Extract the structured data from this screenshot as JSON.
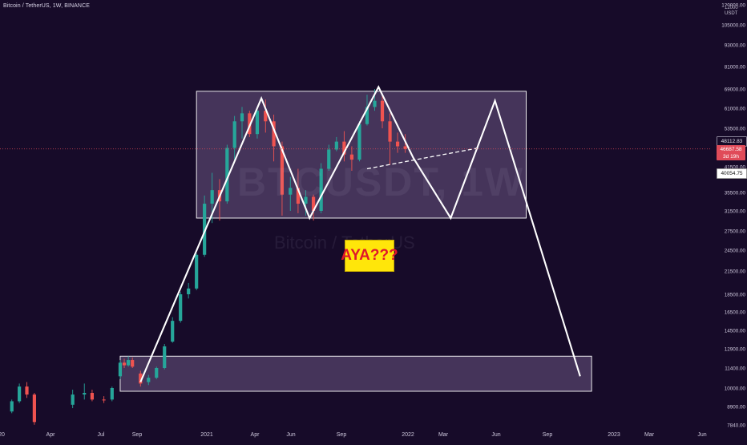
{
  "header": {
    "title": "Bitcoin / TetherUS, 1W, BINANCE"
  },
  "watermark": {
    "symbol": "BTCUSDT, 1W",
    "name": "Bitcoin / TetherUS"
  },
  "annotation": {
    "text": "AYA???"
  },
  "currency": {
    "line1": "12000",
    "line2": "USDT"
  },
  "price_tags": {
    "tag1": "48112.83",
    "tag2": "46687.58",
    "tag2_countdown": "3d 19h",
    "tag3": "40054.75"
  },
  "colors": {
    "background": "#170b29",
    "up_candle": "#26a69a",
    "down_candle": "#ef5350",
    "overlay_box": "#a78bc3",
    "drawing": "#ffffff",
    "annotation_bg": "#ffe60a",
    "annotation_text": "#e0162b"
  },
  "chart_data": {
    "type": "candlestick",
    "title": "Bitcoin / TetherUS, 1W, BINANCE",
    "y_scale": "log",
    "ylim": [
      7840,
      120000
    ],
    "y_ticks": [
      {
        "value": 120000,
        "label": "120000.00"
      },
      {
        "value": 105000,
        "label": "105000.00"
      },
      {
        "value": 93000,
        "label": "93000.00"
      },
      {
        "value": 81000,
        "label": "81000.00"
      },
      {
        "value": 69000,
        "label": "69000.00"
      },
      {
        "value": 61000,
        "label": "61000.00"
      },
      {
        "value": 53500,
        "label": "53500.00"
      },
      {
        "value": 41500,
        "label": "41500.00"
      },
      {
        "value": 35500,
        "label": "35500.00"
      },
      {
        "value": 31500,
        "label": "31500.00"
      },
      {
        "value": 27500,
        "label": "27500.00"
      },
      {
        "value": 24500,
        "label": "24500.00"
      },
      {
        "value": 21500,
        "label": "21500.00"
      },
      {
        "value": 18500,
        "label": "18500.00"
      },
      {
        "value": 16500,
        "label": "16500.00"
      },
      {
        "value": 14500,
        "label": "14500.00"
      },
      {
        "value": 12900,
        "label": "12900.00"
      },
      {
        "value": 11400,
        "label": "11400.00"
      },
      {
        "value": 10000,
        "label": "10000.00"
      },
      {
        "value": 8900,
        "label": "8900.00"
      },
      {
        "value": 7840,
        "label": "7840.00"
      }
    ],
    "x_ticks": [
      {
        "date": "2020-01-01",
        "label": "20"
      },
      {
        "date": "2020-04-01",
        "label": "Apr"
      },
      {
        "date": "2020-07-01",
        "label": "Jul"
      },
      {
        "date": "2020-09-01",
        "label": "Sep"
      },
      {
        "date": "2021-01-01",
        "label": "2021"
      },
      {
        "date": "2021-04-01",
        "label": "Apr"
      },
      {
        "date": "2021-06-01",
        "label": "Jun"
      },
      {
        "date": "2021-09-01",
        "label": "Sep"
      },
      {
        "date": "2022-01-01",
        "label": "2022"
      },
      {
        "date": "2022-03-01",
        "label": "Mar"
      },
      {
        "date": "2022-06-01",
        "label": "Jun"
      },
      {
        "date": "2022-09-01",
        "label": "Sep"
      },
      {
        "date": "2023-01-01",
        "label": "2023"
      },
      {
        "date": "2023-03-01",
        "label": "Mar"
      },
      {
        "date": "2023-06-01",
        "label": "Jun"
      }
    ],
    "candles": [
      {
        "d": "2020-01-20",
        "o": 8600,
        "h": 9300,
        "l": 8500,
        "c": 9200
      },
      {
        "d": "2020-02-03",
        "o": 9200,
        "h": 10300,
        "l": 9100,
        "c": 10100
      },
      {
        "d": "2020-02-17",
        "o": 10100,
        "h": 10400,
        "l": 9400,
        "c": 9600
      },
      {
        "d": "2020-03-02",
        "o": 9600,
        "h": 9700,
        "l": 7850,
        "c": 8000
      },
      {
        "d": "2020-05-11",
        "o": 9000,
        "h": 9900,
        "l": 8800,
        "c": 9600
      },
      {
        "d": "2020-06-01",
        "o": 9600,
        "h": 10300,
        "l": 9300,
        "c": 9700
      },
      {
        "d": "2020-06-15",
        "o": 9700,
        "h": 9900,
        "l": 9200,
        "c": 9300
      },
      {
        "d": "2020-07-06",
        "o": 9300,
        "h": 9500,
        "l": 9100,
        "c": 9250
      },
      {
        "d": "2020-07-20",
        "o": 9300,
        "h": 10100,
        "l": 9200,
        "c": 10000
      },
      {
        "d": "2020-08-03",
        "o": 10800,
        "h": 12000,
        "l": 10600,
        "c": 11800
      },
      {
        "d": "2020-08-10",
        "o": 11800,
        "h": 12100,
        "l": 11400,
        "c": 11600
      },
      {
        "d": "2020-08-17",
        "o": 11600,
        "h": 12300,
        "l": 11500,
        "c": 12000
      },
      {
        "d": "2020-08-24",
        "o": 12000,
        "h": 12200,
        "l": 11400,
        "c": 11500
      },
      {
        "d": "2020-09-07",
        "o": 11000,
        "h": 11200,
        "l": 10100,
        "c": 10300
      },
      {
        "d": "2020-09-21",
        "o": 10400,
        "h": 10900,
        "l": 10200,
        "c": 10700
      },
      {
        "d": "2020-10-05",
        "o": 10700,
        "h": 11500,
        "l": 10600,
        "c": 11400
      },
      {
        "d": "2020-10-19",
        "o": 11400,
        "h": 13300,
        "l": 11300,
        "c": 13100
      },
      {
        "d": "2020-11-02",
        "o": 13500,
        "h": 15900,
        "l": 13400,
        "c": 15500
      },
      {
        "d": "2020-11-16",
        "o": 15500,
        "h": 18800,
        "l": 15300,
        "c": 18500
      },
      {
        "d": "2020-11-30",
        "o": 18500,
        "h": 19900,
        "l": 18000,
        "c": 19200
      },
      {
        "d": "2020-12-14",
        "o": 19200,
        "h": 24000,
        "l": 19000,
        "c": 23800
      },
      {
        "d": "2020-12-28",
        "o": 23800,
        "h": 34800,
        "l": 23500,
        "c": 33000
      },
      {
        "d": "2021-01-11",
        "o": 33000,
        "h": 40000,
        "l": 29000,
        "c": 36000
      },
      {
        "d": "2021-01-25",
        "o": 36000,
        "h": 38500,
        "l": 29500,
        "c": 33500
      },
      {
        "d": "2021-02-08",
        "o": 33500,
        "h": 48000,
        "l": 33000,
        "c": 47000
      },
      {
        "d": "2021-02-22",
        "o": 47000,
        "h": 58000,
        "l": 43000,
        "c": 56000
      },
      {
        "d": "2021-03-08",
        "o": 56000,
        "h": 61500,
        "l": 50000,
        "c": 59000
      },
      {
        "d": "2021-03-22",
        "o": 59000,
        "h": 60000,
        "l": 50500,
        "c": 51500
      },
      {
        "d": "2021-04-05",
        "o": 51500,
        "h": 61500,
        "l": 50000,
        "c": 60000
      },
      {
        "d": "2021-04-19",
        "o": 60000,
        "h": 64500,
        "l": 52000,
        "c": 56000
      },
      {
        "d": "2021-05-03",
        "o": 56000,
        "h": 58500,
        "l": 43000,
        "c": 47500
      },
      {
        "d": "2021-05-17",
        "o": 47500,
        "h": 49000,
        "l": 30500,
        "c": 35000
      },
      {
        "d": "2021-05-31",
        "o": 35000,
        "h": 39000,
        "l": 31500,
        "c": 36500
      },
      {
        "d": "2021-06-14",
        "o": 36500,
        "h": 41000,
        "l": 31000,
        "c": 33000
      },
      {
        "d": "2021-06-28",
        "o": 33000,
        "h": 36000,
        "l": 30500,
        "c": 34500
      },
      {
        "d": "2021-07-12",
        "o": 34500,
        "h": 35000,
        "l": 29500,
        "c": 31500
      },
      {
        "d": "2021-07-26",
        "o": 31500,
        "h": 42500,
        "l": 31000,
        "c": 41000
      },
      {
        "d": "2021-08-09",
        "o": 41000,
        "h": 48000,
        "l": 40500,
        "c": 46500
      },
      {
        "d": "2021-08-23",
        "o": 46500,
        "h": 50500,
        "l": 46000,
        "c": 49000
      },
      {
        "d": "2021-09-06",
        "o": 49000,
        "h": 52500,
        "l": 43000,
        "c": 45000
      },
      {
        "d": "2021-09-20",
        "o": 45000,
        "h": 47500,
        "l": 40500,
        "c": 43500
      },
      {
        "d": "2021-10-04",
        "o": 43500,
        "h": 56000,
        "l": 43000,
        "c": 55000
      },
      {
        "d": "2021-10-18",
        "o": 55000,
        "h": 66500,
        "l": 54500,
        "c": 61500
      },
      {
        "d": "2021-11-01",
        "o": 61500,
        "h": 69000,
        "l": 60000,
        "c": 64000
      },
      {
        "d": "2021-11-15",
        "o": 64000,
        "h": 66000,
        "l": 53500,
        "c": 56000
      },
      {
        "d": "2021-11-29",
        "o": 56000,
        "h": 59000,
        "l": 42000,
        "c": 49000
      },
      {
        "d": "2021-12-13",
        "o": 49000,
        "h": 52000,
        "l": 45500,
        "c": 47500
      },
      {
        "d": "2021-12-27",
        "o": 47500,
        "h": 51500,
        "l": 45500,
        "c": 46700
      }
    ],
    "boxes": [
      {
        "x0": "2020-12-14",
        "x1": "2022-07-25",
        "y0": 30000,
        "y1": 68000
      },
      {
        "x0": "2020-08-03",
        "x1": "2022-11-21",
        "y0": 9800,
        "y1": 12300
      }
    ],
    "pattern_line": [
      {
        "d": "2020-09-07",
        "v": 10400
      },
      {
        "d": "2021-04-12",
        "v": 65000
      },
      {
        "d": "2021-07-05",
        "v": 30000
      },
      {
        "d": "2021-11-08",
        "v": 70000
      },
      {
        "d": "2022-01-10",
        "v": 44000
      },
      {
        "d": "2022-03-14",
        "v": 30000
      },
      {
        "d": "2022-05-30",
        "v": 64000
      },
      {
        "d": "2022-10-31",
        "v": 10800
      }
    ],
    "neckline_dashed": [
      {
        "d": "2021-10-18",
        "v": 41000
      },
      {
        "d": "2022-05-02",
        "v": 47000
      }
    ],
    "current_price": 46687.58
  }
}
